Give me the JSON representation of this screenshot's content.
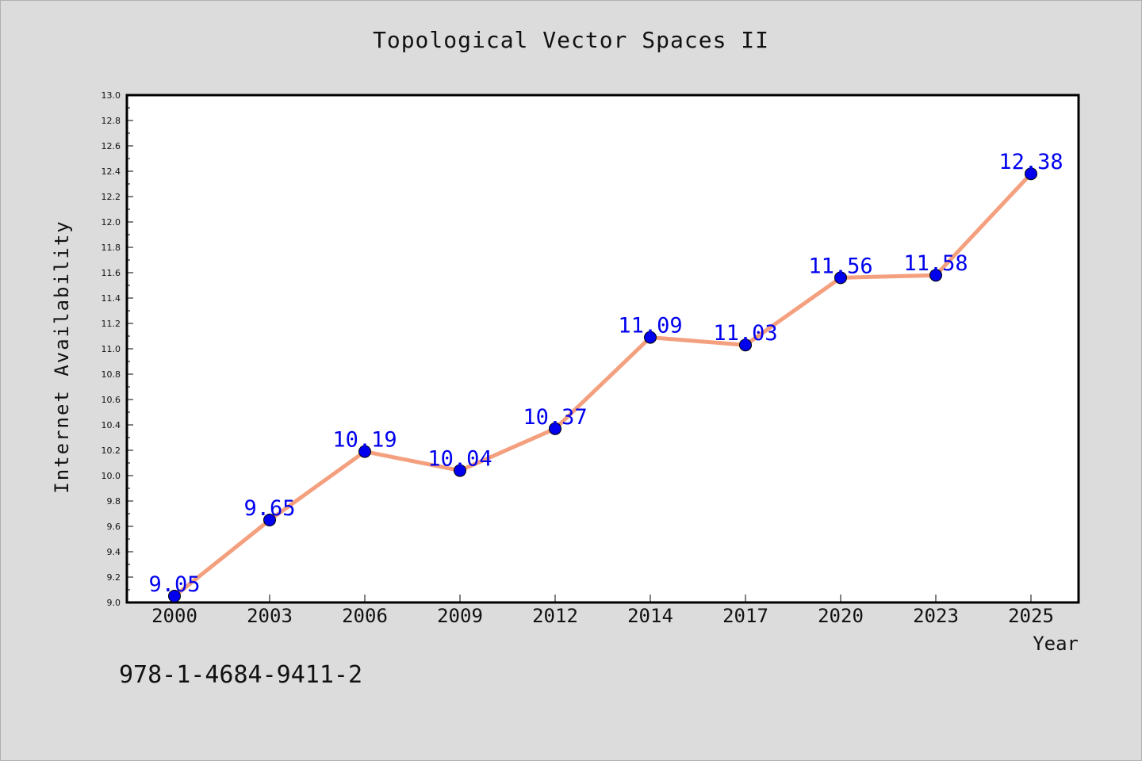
{
  "chart_data": {
    "type": "line",
    "title": "Topological Vector Spaces II",
    "xlabel": "Year",
    "ylabel": "Internet Availability",
    "categories": [
      "2000",
      "2003",
      "2006",
      "2009",
      "2012",
      "2014",
      "2017",
      "2020",
      "2023",
      "2025"
    ],
    "series": [
      {
        "values": [
          9.05,
          9.65,
          10.19,
          10.04,
          10.37,
          11.09,
          11.03,
          11.56,
          11.58,
          12.38
        ],
        "line_color": "#f4a07e",
        "marker_color": "#0000ee"
      }
    ],
    "data_labels": [
      "9.05",
      "9.65",
      "10.19",
      "10.04",
      "10.37",
      "11.09",
      "11.03",
      "11.56",
      "11.58",
      "12.38"
    ],
    "ylim": [
      9.0,
      13.0
    ],
    "yticks": [
      "9.0",
      "9.2",
      "9.4",
      "9.6",
      "9.8",
      "10.0",
      "10.2",
      "10.4",
      "10.6",
      "10.8",
      "11.0",
      "11.2",
      "11.4",
      "11.6",
      "11.8",
      "12.0",
      "12.2",
      "12.4",
      "12.6",
      "12.8",
      "13.0"
    ],
    "grid": false,
    "legend": "none",
    "label_color": "#0000ee"
  },
  "footer": {
    "isbn": "978-1-4684-9411-2"
  }
}
